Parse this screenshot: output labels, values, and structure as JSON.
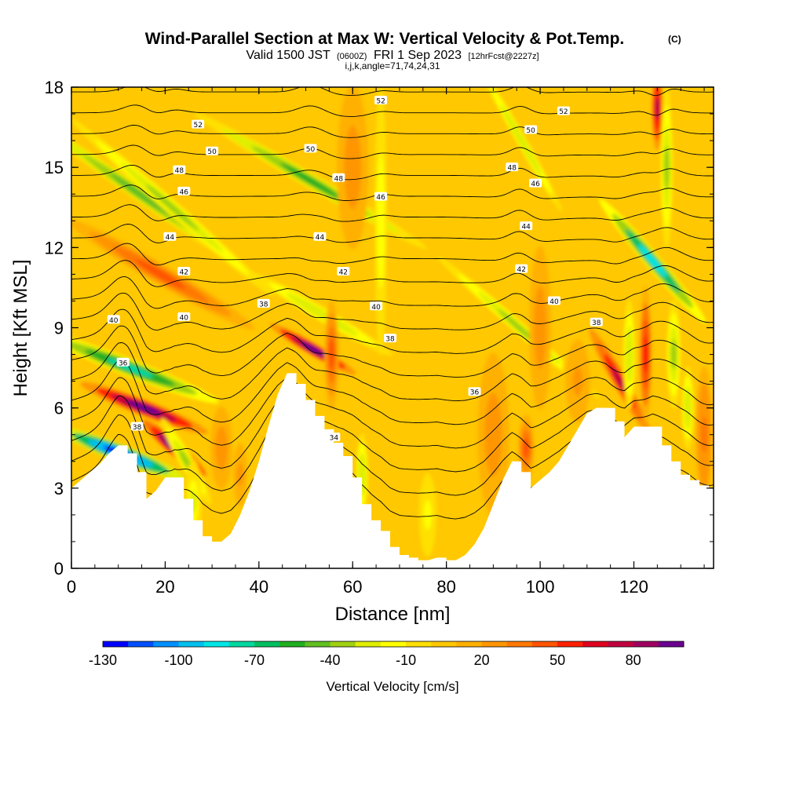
{
  "title": {
    "main": "Wind-Parallel Section at Max W: Vertical Velocity & Pot.Temp.",
    "copyright": "(C)",
    "valid_prefix": "Valid 1500 JST",
    "valid_utc": "(0600Z)",
    "valid_date": "FRI 1 Sep 2023",
    "forecast": "[12hrFcst@2227z]",
    "indices": "i,j,k,angle=71,74,24,31"
  },
  "chart_data": {
    "type": "heatmap",
    "xlabel": "Distance [nm]",
    "ylabel": "Height [Kft MSL]",
    "xlim": [
      0,
      137
    ],
    "ylim": [
      0,
      18
    ],
    "x_ticks": [
      "0",
      "20",
      "40",
      "60",
      "80",
      "100",
      "120"
    ],
    "x_tick_values": [
      0,
      20,
      40,
      60,
      80,
      100,
      120
    ],
    "y_ticks": [
      "0",
      "3",
      "6",
      "9",
      "12",
      "15",
      "18"
    ],
    "y_tick_values": [
      0,
      3,
      6,
      9,
      12,
      15,
      18
    ],
    "terrain_top_kft": [
      [
        0,
        3.0
      ],
      [
        2,
        3.3
      ],
      [
        4,
        3.6
      ],
      [
        6,
        3.9
      ],
      [
        8,
        4.3
      ],
      [
        10,
        4.6
      ],
      [
        12,
        4.3
      ],
      [
        14,
        3.6
      ],
      [
        16,
        2.6
      ],
      [
        18,
        2.9
      ],
      [
        20,
        3.4
      ],
      [
        22,
        3.4
      ],
      [
        24,
        2.6
      ],
      [
        26,
        1.8
      ],
      [
        28,
        1.2
      ],
      [
        30,
        1.0
      ],
      [
        32,
        1.0
      ],
      [
        34,
        1.3
      ],
      [
        36,
        2.0
      ],
      [
        38,
        2.9
      ],
      [
        40,
        4.0
      ],
      [
        42,
        5.3
      ],
      [
        44,
        6.5
      ],
      [
        46,
        7.3
      ],
      [
        48,
        6.9
      ],
      [
        50,
        6.3
      ],
      [
        52,
        5.7
      ],
      [
        54,
        5.2
      ],
      [
        56,
        4.7
      ],
      [
        58,
        4.2
      ],
      [
        60,
        3.4
      ],
      [
        62,
        2.4
      ],
      [
        64,
        1.8
      ],
      [
        66,
        1.4
      ],
      [
        68,
        0.8
      ],
      [
        70,
        0.5
      ],
      [
        72,
        0.4
      ],
      [
        74,
        0.3
      ],
      [
        76,
        0.3
      ],
      [
        78,
        0.4
      ],
      [
        80,
        0.3
      ],
      [
        82,
        0.3
      ],
      [
        84,
        0.5
      ],
      [
        86,
        0.9
      ],
      [
        88,
        1.5
      ],
      [
        90,
        2.4
      ],
      [
        92,
        3.3
      ],
      [
        94,
        4.0
      ],
      [
        96,
        3.6
      ],
      [
        98,
        3.0
      ],
      [
        100,
        3.3
      ],
      [
        102,
        3.6
      ],
      [
        104,
        4.0
      ],
      [
        106,
        4.6
      ],
      [
        108,
        5.2
      ],
      [
        110,
        5.8
      ],
      [
        112,
        6.0
      ],
      [
        114,
        6.0
      ],
      [
        116,
        5.5
      ],
      [
        118,
        4.9
      ],
      [
        120,
        5.3
      ],
      [
        122,
        5.3
      ],
      [
        124,
        5.3
      ],
      [
        126,
        4.6
      ],
      [
        128,
        4.0
      ],
      [
        130,
        3.5
      ],
      [
        132,
        3.3
      ],
      [
        134,
        3.1
      ],
      [
        136,
        3.0
      ],
      [
        137,
        3.0
      ]
    ],
    "w_features_cm_s": [
      {
        "x": 10.5,
        "y": 4.3,
        "w": -130,
        "sx": 1.6,
        "sy": 2.5,
        "tilt": 0.45
      },
      {
        "x": 12.5,
        "y": 7.5,
        "w": -80,
        "sx": 1.5,
        "sy": 3.5,
        "tilt": 0.45
      },
      {
        "x": 14.5,
        "y": 14.0,
        "w": -50,
        "sx": 1.2,
        "sy": 5.0,
        "tilt": 0.25
      },
      {
        "x": 15.5,
        "y": 6.0,
        "w": 95,
        "sx": 1.4,
        "sy": 2.5,
        "tilt": 0.45
      },
      {
        "x": 19.0,
        "y": 11.0,
        "w": 45,
        "sx": 1.8,
        "sy": 4.0,
        "tilt": 0.3
      },
      {
        "x": 22.0,
        "y": 4.5,
        "w": 110,
        "sx": 1.2,
        "sy": 1.5,
        "tilt": 0.2
      },
      {
        "x": 21.5,
        "y": 13.5,
        "w": -40,
        "sx": 1.2,
        "sy": 5.0,
        "tilt": 0.2
      },
      {
        "x": 24.5,
        "y": 4.0,
        "w": -40,
        "sx": 1.2,
        "sy": 1.8,
        "tilt": 0.1
      },
      {
        "x": 26.0,
        "y": 2.5,
        "w": -25,
        "sx": 1.5,
        "sy": 1.5,
        "tilt": 0.0
      },
      {
        "x": 32.0,
        "y": 4.5,
        "w": 25,
        "sx": 2.0,
        "sy": 1.5,
        "tilt": 0.0
      },
      {
        "x": 36.0,
        "y": 3.5,
        "w": 20,
        "sx": 1.5,
        "sy": 1.5,
        "tilt": 0.0
      },
      {
        "x": 51.5,
        "y": 8.2,
        "w": 100,
        "sx": 1.0,
        "sy": 1.8,
        "tilt": 0.3
      },
      {
        "x": 51.0,
        "y": 14.5,
        "w": -55,
        "sx": 1.3,
        "sy": 5.0,
        "tilt": 0.3
      },
      {
        "x": 53.5,
        "y": 9.5,
        "w": -30,
        "sx": 1.2,
        "sy": 3.0,
        "tilt": 0.3
      },
      {
        "x": 55.5,
        "y": 8.0,
        "w": 40,
        "sx": 1.2,
        "sy": 2.0,
        "tilt": 0.0
      },
      {
        "x": 60.0,
        "y": 15.0,
        "w": 25,
        "sx": 3.0,
        "sy": 3.0,
        "tilt": 0.0
      },
      {
        "x": 62.0,
        "y": 3.5,
        "w": -30,
        "sx": 1.0,
        "sy": 1.5,
        "tilt": 0.0
      },
      {
        "x": 66.0,
        "y": 13.0,
        "w": -20,
        "sx": 1.0,
        "sy": 5.0,
        "tilt": 0.0
      },
      {
        "x": 76.0,
        "y": 2.0,
        "w": -15,
        "sx": 2.0,
        "sy": 2.0,
        "tilt": 0.0
      },
      {
        "x": 90.0,
        "y": 5.0,
        "w": 25,
        "sx": 3.0,
        "sy": 3.0,
        "tilt": 0.0
      },
      {
        "x": 95.5,
        "y": 9.0,
        "w": -40,
        "sx": 1.0,
        "sy": 4.0,
        "tilt": 0.2
      },
      {
        "x": 96.0,
        "y": 16.0,
        "w": -30,
        "sx": 0.8,
        "sy": 3.0,
        "tilt": 0.1
      },
      {
        "x": 97.0,
        "y": 4.5,
        "w": 45,
        "sx": 1.4,
        "sy": 1.2,
        "tilt": 0.0
      },
      {
        "x": 100.0,
        "y": 9.0,
        "w": 25,
        "sx": 2.0,
        "sy": 3.0,
        "tilt": 0.0
      },
      {
        "x": 108.0,
        "y": 7.0,
        "w": 20,
        "sx": 3.0,
        "sy": 2.0,
        "tilt": 0.0
      },
      {
        "x": 117.0,
        "y": 7.0,
        "w": 70,
        "sx": 1.2,
        "sy": 2.2,
        "tilt": 0.1
      },
      {
        "x": 119.0,
        "y": 8.0,
        "w": -30,
        "sx": 1.0,
        "sy": 2.0,
        "tilt": 0.0
      },
      {
        "x": 122.5,
        "y": 8.0,
        "w": 55,
        "sx": 1.0,
        "sy": 2.5,
        "tilt": 0.0
      },
      {
        "x": 124.0,
        "y": 11.5,
        "w": -85,
        "sx": 1.3,
        "sy": 3.0,
        "tilt": 0.15
      },
      {
        "x": 125.0,
        "y": 17.2,
        "w": 75,
        "sx": 0.8,
        "sy": 1.5,
        "tilt": 0.0
      },
      {
        "x": 127.0,
        "y": 15.0,
        "w": -35,
        "sx": 1.0,
        "sy": 3.0,
        "tilt": 0.0
      },
      {
        "x": 128.5,
        "y": 8.0,
        "w": -35,
        "sx": 1.2,
        "sy": 2.0,
        "tilt": 0.0
      },
      {
        "x": 131.5,
        "y": 6.0,
        "w": -30,
        "sx": 1.0,
        "sy": 1.5,
        "tilt": 0.0
      },
      {
        "x": 135.0,
        "y": 5.0,
        "w": 35,
        "sx": 1.5,
        "sy": 2.5,
        "tilt": 0.0
      }
    ],
    "theta_isentropes": {
      "first_value": 34,
      "count": 20,
      "step": 1,
      "labels": [
        {
          "text": "34",
          "x": 56,
          "y": 4.9
        },
        {
          "text": "36",
          "x": 11,
          "y": 7.7
        },
        {
          "text": "36",
          "x": 86,
          "y": 6.6
        },
        {
          "text": "38",
          "x": 14,
          "y": 5.3
        },
        {
          "text": "38",
          "x": 41,
          "y": 9.9
        },
        {
          "text": "38",
          "x": 68,
          "y": 8.6
        },
        {
          "text": "38",
          "x": 112,
          "y": 9.2
        },
        {
          "text": "40",
          "x": 9,
          "y": 9.3
        },
        {
          "text": "40",
          "x": 24,
          "y": 9.4
        },
        {
          "text": "40",
          "x": 65,
          "y": 9.8
        },
        {
          "text": "40",
          "x": 103,
          "y": 10.0
        },
        {
          "text": "42",
          "x": 24,
          "y": 11.1
        },
        {
          "text": "42",
          "x": 58,
          "y": 11.1
        },
        {
          "text": "42",
          "x": 96,
          "y": 11.2
        },
        {
          "text": "44",
          "x": 21,
          "y": 12.4
        },
        {
          "text": "44",
          "x": 53,
          "y": 12.4
        },
        {
          "text": "44",
          "x": 97,
          "y": 12.8
        },
        {
          "text": "46",
          "x": 24,
          "y": 14.1
        },
        {
          "text": "46",
          "x": 66,
          "y": 13.9
        },
        {
          "text": "46",
          "x": 99,
          "y": 14.4
        },
        {
          "text": "48",
          "x": 23,
          "y": 14.9
        },
        {
          "text": "48",
          "x": 57,
          "y": 14.6
        },
        {
          "text": "48",
          "x": 94,
          "y": 15.0
        },
        {
          "text": "50",
          "x": 30,
          "y": 15.6
        },
        {
          "text": "50",
          "x": 51,
          "y": 15.7
        },
        {
          "text": "50",
          "x": 98,
          "y": 16.4
        },
        {
          "text": "52",
          "x": 27,
          "y": 16.6
        },
        {
          "text": "52",
          "x": 66,
          "y": 17.5
        },
        {
          "text": "52",
          "x": 105,
          "y": 17.1
        }
      ]
    },
    "colorbar": {
      "label": "Vertical Velocity [cm/s]",
      "tick_labels": [
        "-130",
        "-100",
        "-70",
        "-40",
        "-10",
        "20",
        "50",
        "80"
      ],
      "tick_values": [
        -130,
        -100,
        -70,
        -40,
        -10,
        20,
        50,
        80
      ],
      "min": -130,
      "max": 100,
      "step": 10,
      "colors": [
        "#0000ff",
        "#0050ff",
        "#0090ff",
        "#00c0f0",
        "#00e6e6",
        "#00d8a0",
        "#00c060",
        "#20b020",
        "#60c020",
        "#a0d010",
        "#e0ee00",
        "#ffff00",
        "#ffe000",
        "#ffc800",
        "#ffb000",
        "#ff9600",
        "#ff7800",
        "#ff5400",
        "#ff2000",
        "#e00020",
        "#c00040",
        "#a00060",
        "#6a0090"
      ]
    }
  }
}
